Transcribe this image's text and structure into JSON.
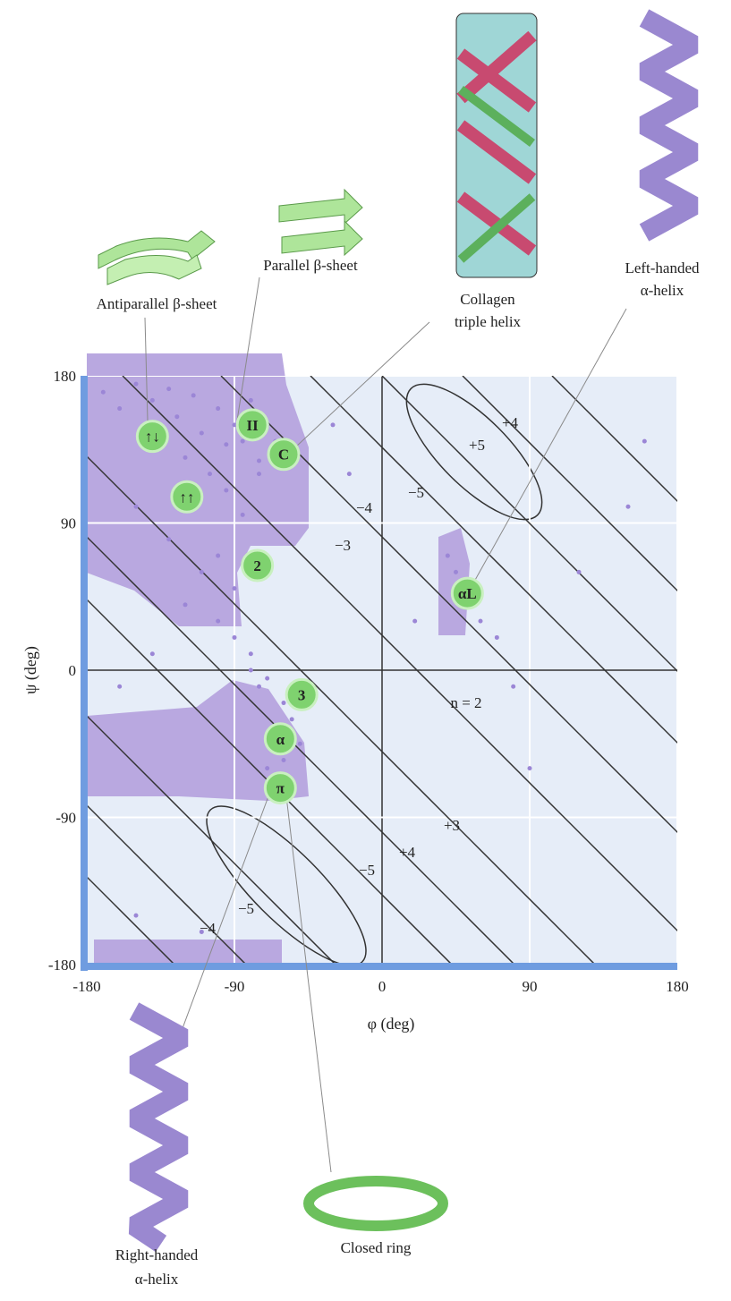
{
  "chart_data": {
    "type": "scatter",
    "xlabel": "φ (deg)",
    "ylabel": "ψ (deg)",
    "xlim": [
      -180,
      180
    ],
    "ylim": [
      -180,
      180
    ],
    "xticks": [
      -180,
      -90,
      0,
      90,
      180
    ],
    "yticks": [
      -180,
      -90,
      0,
      90,
      180
    ],
    "color": "#9b86d6",
    "x": [
      -170,
      -160,
      -150,
      -145,
      -140,
      -135,
      -130,
      -125,
      -120,
      -115,
      -110,
      -105,
      -100,
      -95,
      -90,
      -85,
      -80,
      -75,
      -70,
      -65,
      -150,
      -130,
      -110,
      -95,
      -85,
      -75,
      -65,
      -55,
      -100,
      -90,
      -80,
      -70,
      -60,
      -55,
      -50,
      -65,
      -60,
      -70,
      -75,
      -80,
      -120,
      -140,
      -160,
      -100,
      -90,
      50,
      45,
      60,
      70,
      40,
      160,
      150,
      120,
      -30,
      -20,
      20,
      80,
      90,
      -150,
      -110
    ],
    "y": [
      170,
      160,
      175,
      150,
      165,
      140,
      172,
      155,
      130,
      168,
      145,
      120,
      160,
      138,
      150,
      140,
      165,
      128,
      150,
      135,
      100,
      80,
      60,
      110,
      95,
      120,
      140,
      130,
      30,
      20,
      10,
      -5,
      -20,
      -30,
      -45,
      -40,
      -55,
      -60,
      -10,
      0,
      40,
      10,
      -10,
      70,
      50,
      45,
      60,
      30,
      20,
      70,
      140,
      100,
      60,
      150,
      120,
      30,
      -10,
      -60,
      -150,
      -160
    ],
    "markers": [
      {
        "label": "↑↓",
        "x": -140,
        "y": 143
      },
      {
        "label": "↑↑",
        "x": -119,
        "y": 106
      },
      {
        "label": "II",
        "x": -79,
        "y": 150
      },
      {
        "label": "C",
        "x": -60,
        "y": 132
      },
      {
        "label": "2",
        "x": -76,
        "y": 64
      },
      {
        "label": "αL",
        "x": 52,
        "y": 47
      },
      {
        "label": "3",
        "x": -49,
        "y": -15
      },
      {
        "label": "α",
        "x": -62,
        "y": -42
      },
      {
        "label": "π",
        "x": -62,
        "y": -72
      }
    ],
    "contour_labels": [
      "+4",
      "+5",
      "−5",
      "−4",
      "−3",
      "n = 2",
      "+3",
      "+4",
      "−5",
      "−5",
      "−4"
    ],
    "annotations": [
      "Antiparallel β-sheet",
      "Parallel β-sheet",
      "Collagen",
      "triple helix",
      "Left-handed",
      "α-helix",
      "Right-handed",
      "α-helix",
      "Closed ring"
    ]
  }
}
